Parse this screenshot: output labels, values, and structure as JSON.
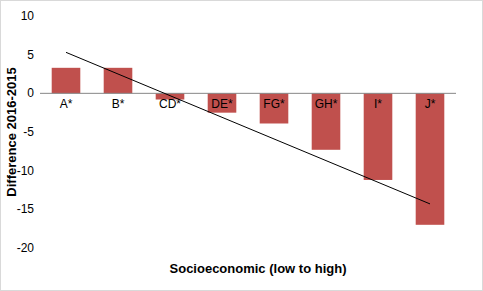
{
  "chart_data": {
    "type": "bar",
    "x_label": "Socioeconomic (low to high)",
    "y_label": "Difference 2016-2015",
    "categories": [
      "A*",
      "B*",
      "CD*",
      "DE*",
      "FG*",
      "GH*",
      "I*",
      "J*"
    ],
    "values": [
      3.3,
      3.3,
      -0.8,
      -2.5,
      -3.9,
      -7.3,
      -11.2,
      -17
    ],
    "color": "#c0504d",
    "trendline": [
      5.3,
      -14.3
    ],
    "ylim": [
      -20,
      10
    ],
    "yticks": [
      -20,
      -15,
      -10,
      -5,
      0,
      5,
      10
    ],
    "grid": false
  }
}
